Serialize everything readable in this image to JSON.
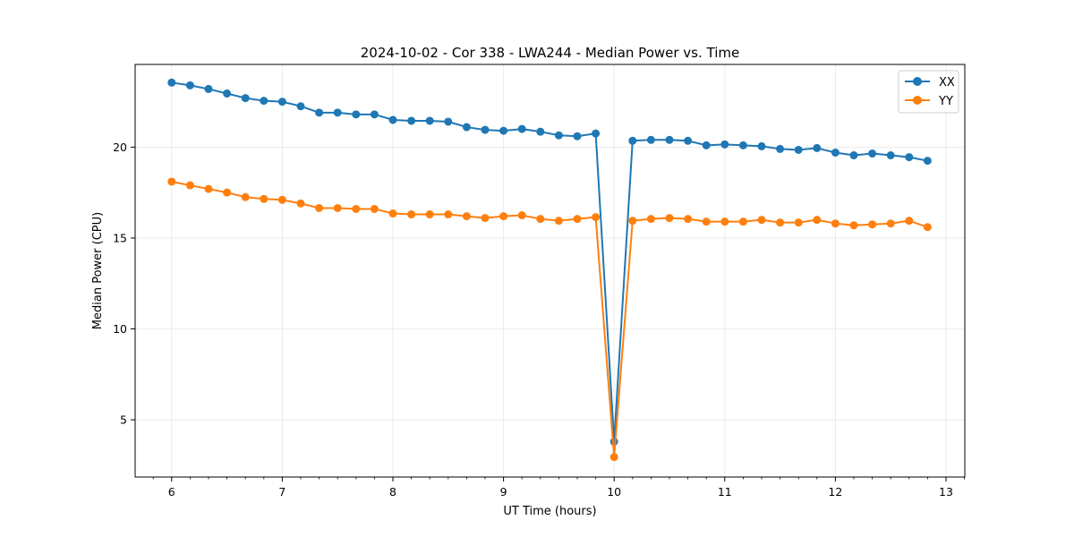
{
  "chart_data": {
    "type": "line",
    "title": "2024-10-02 - Cor 338 - LWA244 - Median Power vs. Time",
    "xlabel": "UT Time (hours)",
    "ylabel": "Median Power (CPU)",
    "xlim": [
      5.67,
      13.17
    ],
    "ylim": [
      1.85,
      24.55
    ],
    "grid": true,
    "legend_position": "top-right",
    "x_ticks": [
      6,
      7,
      8,
      9,
      10,
      11,
      12,
      13
    ],
    "y_ticks": [
      5,
      10,
      15,
      20
    ],
    "x_tick_labels": [
      "6",
      "7",
      "8",
      "9",
      "10",
      "11",
      "12",
      "13"
    ],
    "y_tick_labels": [
      "5",
      "10",
      "15",
      "20"
    ],
    "x": [
      6.0,
      6.1667,
      6.3333,
      6.5,
      6.6667,
      6.8333,
      7.0,
      7.1667,
      7.3333,
      7.5,
      7.6667,
      7.8333,
      8.0,
      8.1667,
      8.3333,
      8.5,
      8.6667,
      8.8333,
      9.0,
      9.1667,
      9.3333,
      9.5,
      9.6667,
      9.8333,
      10.0,
      10.1667,
      10.3333,
      10.5,
      10.6667,
      10.8333,
      11.0,
      11.1667,
      11.3333,
      11.5,
      11.6667,
      11.8333,
      12.0,
      12.1667,
      12.3333,
      12.5,
      12.6667,
      12.8333
    ],
    "series": [
      {
        "name": "XX",
        "color": "#1f77b4",
        "values": [
          23.55,
          23.4,
          23.2,
          22.95,
          22.7,
          22.55,
          22.5,
          22.25,
          21.9,
          21.9,
          21.8,
          21.8,
          21.5,
          21.45,
          21.45,
          21.4,
          21.1,
          20.95,
          20.9,
          21.0,
          20.85,
          20.65,
          20.6,
          20.75,
          3.8,
          20.35,
          20.4,
          20.4,
          20.35,
          20.1,
          20.15,
          20.1,
          20.05,
          19.9,
          19.85,
          19.95,
          19.7,
          19.55,
          19.65,
          19.55,
          19.45,
          19.25
        ]
      },
      {
        "name": "YY",
        "color": "#ff7f0e",
        "values": [
          18.1,
          17.9,
          17.7,
          17.5,
          17.25,
          17.15,
          17.1,
          16.9,
          16.65,
          16.65,
          16.6,
          16.6,
          16.35,
          16.3,
          16.3,
          16.3,
          16.2,
          16.1,
          16.2,
          16.25,
          16.05,
          15.95,
          16.05,
          16.15,
          2.95,
          15.95,
          16.05,
          16.1,
          16.05,
          15.9,
          15.9,
          15.9,
          16.0,
          15.85,
          15.85,
          16.0,
          15.8,
          15.7,
          15.75,
          15.8,
          15.95,
          15.6
        ]
      }
    ]
  }
}
